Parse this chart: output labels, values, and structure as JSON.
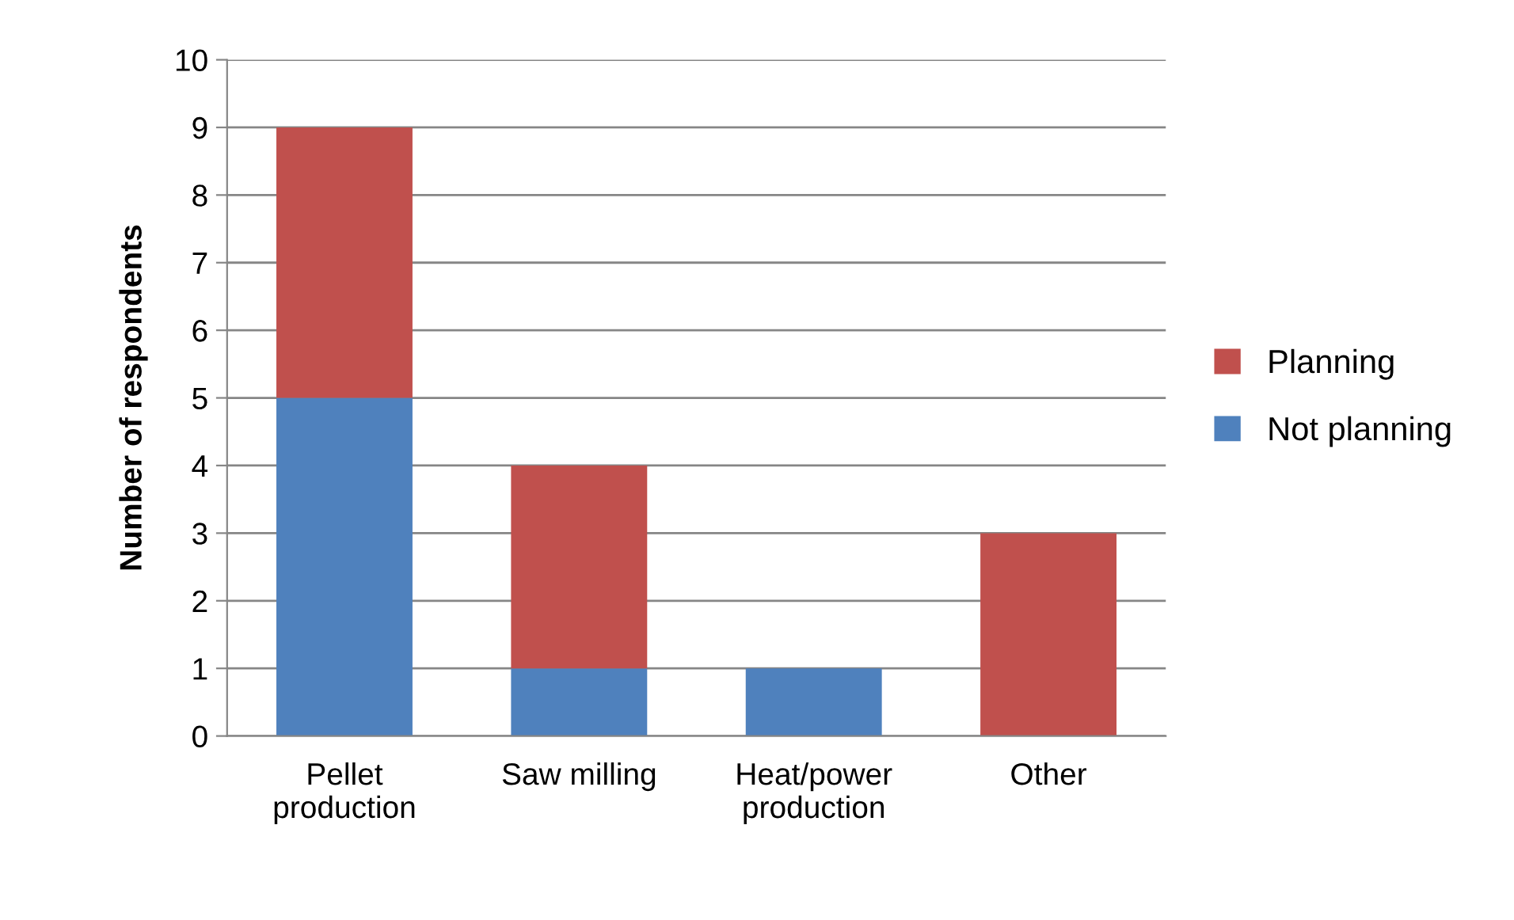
{
  "chart_data": {
    "type": "bar",
    "stacked": true,
    "ylabel": "Number of respondents",
    "categories": [
      "Pellet\nproduction",
      "Saw milling",
      "Heat/power\nproduction",
      "Other"
    ],
    "series": [
      {
        "name": "Not planning",
        "color": "#4f81bd",
        "values": [
          5,
          1,
          1,
          0
        ]
      },
      {
        "name": "Planning",
        "color": "#c0504d",
        "values": [
          4,
          3,
          0,
          3
        ]
      }
    ],
    "ylim": [
      0,
      10
    ],
    "yticks": [
      0,
      1,
      2,
      3,
      4,
      5,
      6,
      7,
      8,
      9,
      10
    ],
    "grid": "y",
    "legend": "right"
  }
}
